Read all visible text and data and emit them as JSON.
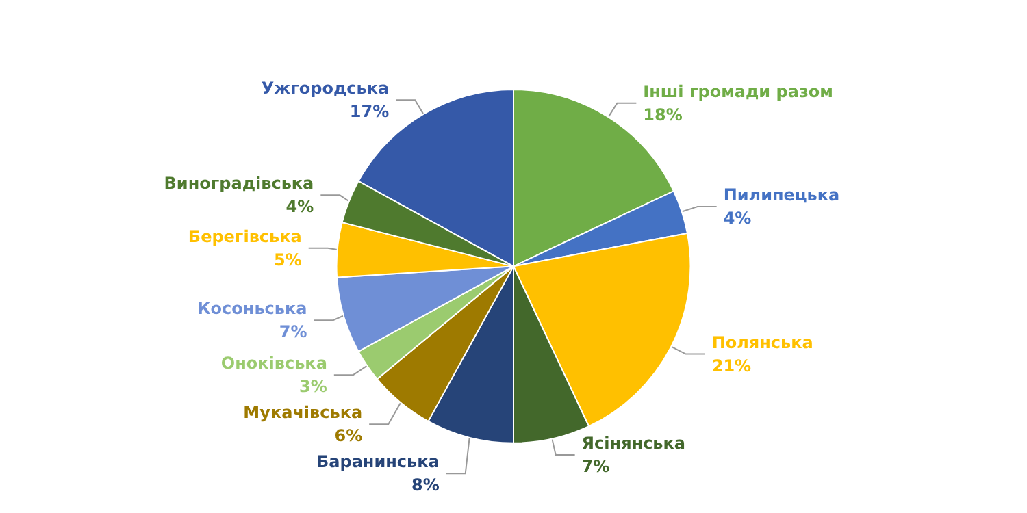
{
  "chart_data": {
    "type": "pie",
    "categories": [
      "Ужгородська",
      "Інші громади разом",
      "Пилипецька",
      "Полянська",
      "Ясінянська",
      "Баранинська",
      "Мукачівська",
      "Оноківська",
      "Косоньська",
      "Берегівська",
      "Виноградівська"
    ],
    "values": [
      17,
      18,
      4,
      21,
      7,
      8,
      6,
      3,
      7,
      5,
      4
    ],
    "value_labels": [
      "17%",
      "18%",
      "4%",
      "21%",
      "7%",
      "8%",
      "6%",
      "3%",
      "7%",
      "5%",
      "4%"
    ],
    "colors": [
      "#3559a8",
      "#70ad47",
      "#4472c4",
      "#ffc000",
      "#43682b",
      "#264478",
      "#9e7a00",
      "#9bcb6f",
      "#6f8fd6",
      "#ffc000",
      "#4f7a2e"
    ],
    "legend": false
  }
}
